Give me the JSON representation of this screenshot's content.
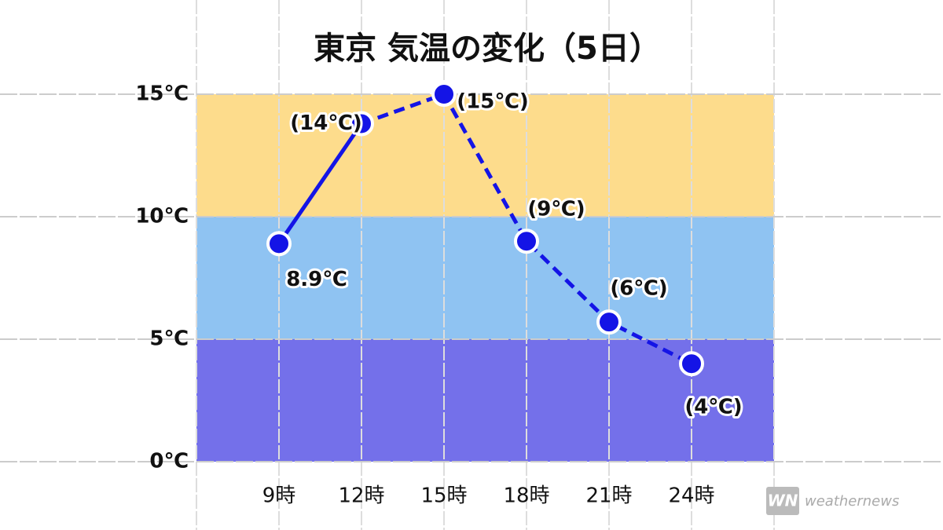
{
  "chart_data": {
    "type": "line",
    "title": "東京 気温の変化（5日）",
    "categories": [
      "9時",
      "12時",
      "15時",
      "18時",
      "21時",
      "24時"
    ],
    "series": [
      {
        "color": "#1414e6",
        "values": [
          8.9,
          13.8,
          15,
          9.0,
          5.7,
          4.0
        ],
        "value_labels": [
          "8.9℃",
          "(14℃)",
          "(15℃)",
          "(9℃)",
          "(6℃)",
          "(4℃)"
        ],
        "dashed_from_index": 1
      }
    ],
    "ylim": [
      0,
      15
    ],
    "yticks": [
      {
        "value": 0,
        "label": "0℃"
      },
      {
        "value": 5,
        "label": "5℃"
      },
      {
        "value": 10,
        "label": "10℃"
      },
      {
        "value": 15,
        "label": "15℃"
      }
    ],
    "bands": [
      {
        "from": 0,
        "to": 5,
        "color": "#7470ea"
      },
      {
        "from": 5,
        "to": 10,
        "color": "#8fc3f2"
      },
      {
        "from": 10,
        "to": 15,
        "color": "#fddc8c"
      }
    ],
    "grid": true,
    "source": "weathernews"
  }
}
